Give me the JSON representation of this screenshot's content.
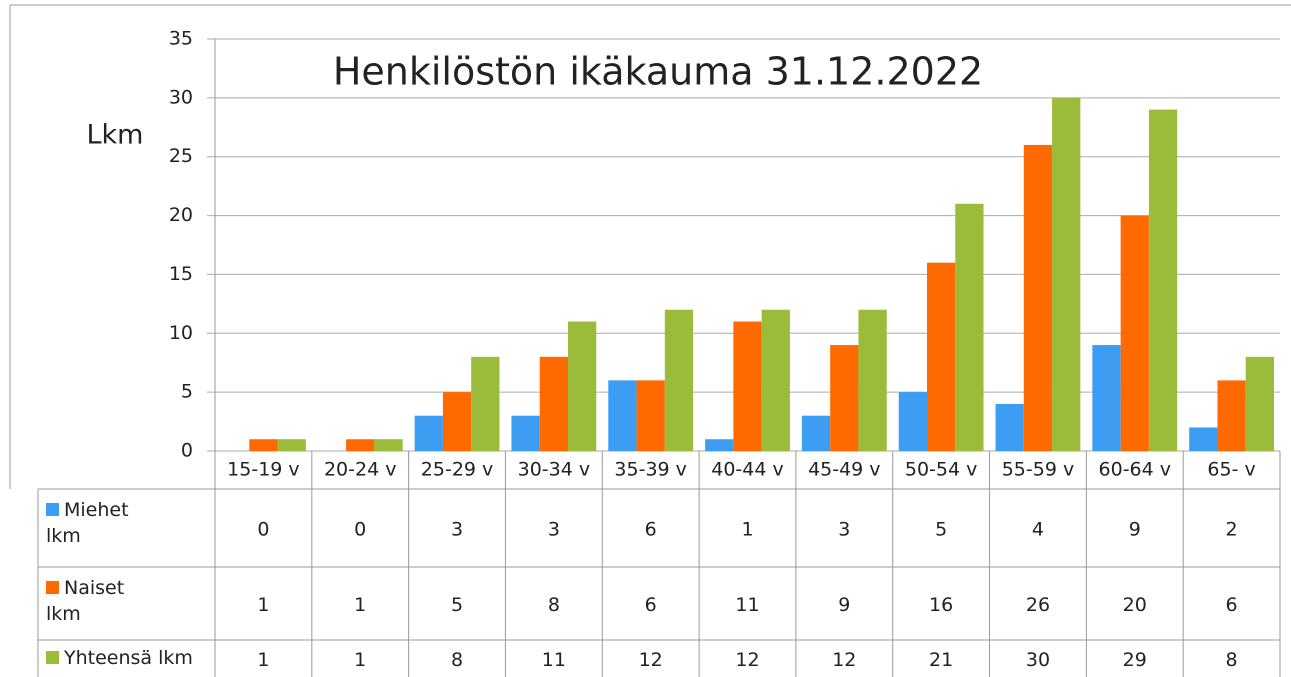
{
  "chart_data": {
    "type": "bar",
    "title": "Henkilöstön ikäkauma 31.12.2022",
    "y_label": "Lkm",
    "categories": [
      "15-19 v",
      "20-24 v",
      "25-29 v",
      "30-34 v",
      "35-39 v",
      "40-44 v",
      "45-49 v",
      "50-54 v",
      "55-59 v",
      "60-64 v",
      "65- v"
    ],
    "series": [
      {
        "name": "Miehet lkm",
        "color": "#3d9df3",
        "values": [
          0,
          0,
          3,
          3,
          6,
          1,
          3,
          5,
          4,
          9,
          2
        ]
      },
      {
        "name": "Naiset lkm",
        "color": "#ff6a00",
        "values": [
          1,
          1,
          5,
          8,
          6,
          11,
          9,
          16,
          26,
          20,
          6
        ]
      },
      {
        "name": "Yhteensä lkm",
        "color": "#9bbb3b",
        "values": [
          1,
          1,
          8,
          11,
          12,
          12,
          12,
          21,
          30,
          29,
          8
        ]
      }
    ],
    "ylim": [
      0,
      35
    ],
    "yticks": [
      0,
      5,
      10,
      15,
      20,
      25,
      30,
      35
    ],
    "grid": true,
    "data_table": true
  }
}
